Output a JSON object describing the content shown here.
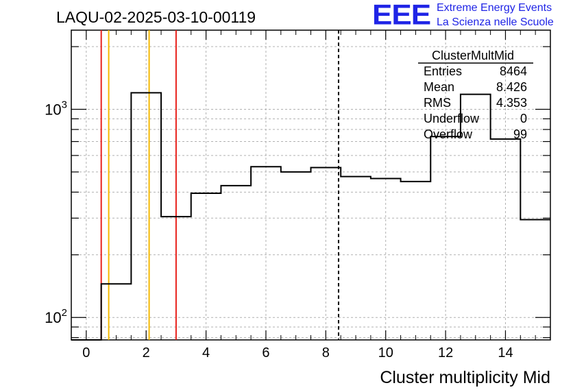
{
  "title": "LAQU-02-2025-03-10-00119",
  "logo": {
    "mark": "EEE",
    "line1": "Extreme Energy Events",
    "line2": "La Scienza nelle Scuole",
    "color": "#1f24e6"
  },
  "stats": {
    "name": "ClusterMultMid",
    "rows": [
      {
        "label": "Entries",
        "value": "8464"
      },
      {
        "label": "Mean",
        "value": "8.426"
      },
      {
        "label": "RMS",
        "value": "4.353"
      },
      {
        "label": "Underflow",
        "value": "0"
      },
      {
        "label": "Overflow",
        "value": "99"
      }
    ]
  },
  "chart_data": {
    "type": "histogram",
    "title": "LAQU-02-2025-03-10-00119",
    "xlabel": "Cluster multiplicity Mid",
    "ylabel": "",
    "xlim": [
      -0.5,
      15.5
    ],
    "ylim": [
      78,
      2400
    ],
    "yscale": "log",
    "grid": true,
    "bin_edges": [
      -0.5,
      0.5,
      1.5,
      2.5,
      3.5,
      4.5,
      5.5,
      6.5,
      7.5,
      8.5,
      9.5,
      10.5,
      11.5,
      12.5,
      13.5,
      14.5,
      15.5
    ],
    "values": [
      0,
      145,
      1200,
      305,
      395,
      430,
      530,
      500,
      525,
      475,
      465,
      450,
      740,
      1180,
      720,
      295
    ],
    "x_ticks": [
      0,
      2,
      4,
      6,
      8,
      10,
      12,
      14
    ],
    "x_tick_labels": [
      "0",
      "2",
      "4",
      "6",
      "8",
      "10",
      "12",
      "14"
    ],
    "y_ticks": [
      100,
      1000
    ],
    "y_tick_labels": [
      {
        "base": "10",
        "exp": "2"
      },
      {
        "base": "10",
        "exp": "3"
      }
    ],
    "vertical_lines": [
      {
        "x": 0.5,
        "color": "#e8211b",
        "style": "solid"
      },
      {
        "x": 0.75,
        "color": "#f5b800",
        "style": "solid"
      },
      {
        "x": 2.1,
        "color": "#f5b800",
        "style": "solid"
      },
      {
        "x": 3.0,
        "color": "#e8211b",
        "style": "solid"
      },
      {
        "x": 8.426,
        "color": "#000000",
        "style": "dashed"
      }
    ]
  }
}
